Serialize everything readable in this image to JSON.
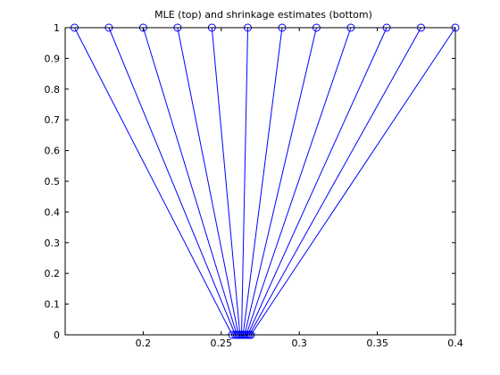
{
  "chart_data": {
    "type": "line",
    "title": "MLE (top) and shrinkage estimates (bottom)",
    "xlabel": "",
    "ylabel": "",
    "xlim": [
      0.15,
      0.4
    ],
    "ylim": [
      0,
      1
    ],
    "xticks": [
      0.2,
      0.25,
      0.3,
      0.35,
      0.4
    ],
    "xtick_labels": [
      "0.2",
      "0.25",
      "0.3",
      "0.35",
      "0.4"
    ],
    "yticks": [
      0,
      0.1,
      0.2,
      0.3,
      0.4,
      0.5,
      0.6,
      0.7,
      0.8,
      0.9,
      1
    ],
    "ytick_labels": [
      "0",
      "0.1",
      "0.2",
      "0.3",
      "0.4",
      "0.5",
      "0.6",
      "0.7",
      "0.8",
      "0.9",
      "1"
    ],
    "grid": false,
    "line_color": "#0000ff",
    "marker": "circle",
    "series": [
      {
        "mle": 0.156,
        "shrinkage": 0.257
      },
      {
        "mle": 0.178,
        "shrinkage": 0.259
      },
      {
        "mle": 0.2,
        "shrinkage": 0.26
      },
      {
        "mle": 0.222,
        "shrinkage": 0.261
      },
      {
        "mle": 0.244,
        "shrinkage": 0.262
      },
      {
        "mle": 0.267,
        "shrinkage": 0.263
      },
      {
        "mle": 0.289,
        "shrinkage": 0.264
      },
      {
        "mle": 0.311,
        "shrinkage": 0.265
      },
      {
        "mle": 0.333,
        "shrinkage": 0.266
      },
      {
        "mle": 0.356,
        "shrinkage": 0.267
      },
      {
        "mle": 0.378,
        "shrinkage": 0.268
      },
      {
        "mle": 0.4,
        "shrinkage": 0.269
      }
    ]
  }
}
